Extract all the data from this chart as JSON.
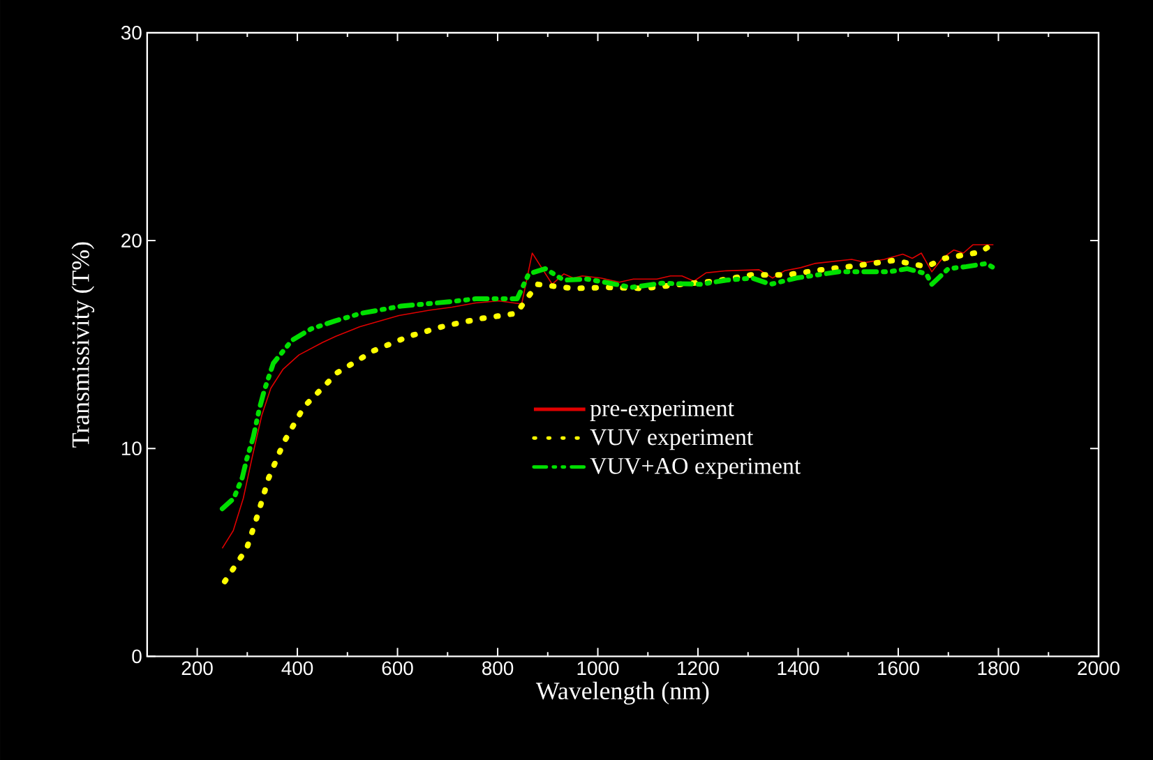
{
  "chart_data": {
    "type": "line",
    "xlabel": "Wavelength (nm)",
    "ylabel": "Transmissivity (T%)",
    "xlim": [
      100,
      2000
    ],
    "xticks": [
      200,
      400,
      600,
      800,
      1000,
      1200,
      1400,
      1600,
      1800,
      2000
    ],
    "ylim": [
      0,
      30
    ],
    "yticks": [
      0,
      10,
      20,
      30
    ],
    "grid": false,
    "legend": "right",
    "marker": "none",
    "series": [
      {
        "name": "pre-experiment",
        "color": "#e00000",
        "line_style": "solid",
        "x": [
          250,
          272,
          292,
          310,
          329,
          347,
          371,
          403,
          450,
          477,
          524,
          603,
          663,
          709,
          756,
          802,
          848,
          869,
          909,
          932,
          951,
          969,
          1006,
          1043,
          1071,
          1118,
          1145,
          1168,
          1192,
          1216,
          1257,
          1322,
          1349,
          1373,
          1405,
          1433,
          1470,
          1507,
          1535,
          1572,
          1609,
          1628,
          1646,
          1667,
          1688,
          1711,
          1730,
          1749,
          1790
        ],
        "values": [
          5.2,
          6.05,
          7.6,
          9.6,
          11.6,
          12.9,
          13.8,
          14.5,
          15.1,
          15.4,
          15.85,
          16.4,
          16.65,
          16.8,
          17.0,
          17.1,
          16.95,
          19.4,
          17.9,
          18.4,
          18.2,
          18.3,
          18.2,
          18.0,
          18.15,
          18.15,
          18.3,
          18.3,
          18.05,
          18.45,
          18.55,
          18.6,
          18.2,
          18.55,
          18.7,
          18.9,
          19.0,
          19.1,
          18.95,
          19.1,
          19.35,
          19.15,
          19.4,
          18.5,
          19.15,
          19.55,
          19.4,
          19.8,
          19.8
        ]
      },
      {
        "name": "VUV experiment",
        "color": "#ffff00",
        "line_style": "dotted",
        "x": [
          255,
          299,
          322,
          343,
          373,
          413,
          480,
          552,
          623,
          695,
          766,
          837,
          879,
          951,
          1021,
          1092,
          1166,
          1234,
          1306,
          1377,
          1448,
          1519,
          1591,
          1656,
          1693,
          1764,
          1780
        ],
        "values": [
          3.6,
          5.2,
          6.9,
          8.6,
          10.3,
          12.0,
          13.65,
          14.7,
          15.4,
          15.9,
          16.25,
          16.5,
          17.9,
          17.7,
          17.75,
          17.7,
          17.9,
          18.05,
          18.35,
          18.35,
          18.6,
          18.8,
          19.05,
          18.75,
          19.15,
          19.45,
          19.7
        ]
      },
      {
        "name": "VUV+AO experiment",
        "color": "#00e000",
        "line_style": "dashdot",
        "x": [
          250,
          273,
          290,
          299,
          312,
          324,
          334,
          352,
          389,
          427,
          477,
          527,
          607,
          700,
          756,
          839,
          862,
          895,
          932,
          978,
          1025,
          1067,
          1127,
          1206,
          1257,
          1308,
          1345,
          1396,
          1481,
          1535,
          1582,
          1618,
          1656,
          1667,
          1700,
          1736,
          1776,
          1790
        ],
        "values": [
          7.1,
          7.6,
          8.6,
          9.5,
          10.55,
          11.9,
          12.8,
          14.1,
          15.2,
          15.75,
          16.15,
          16.5,
          16.85,
          17.05,
          17.2,
          17.2,
          18.4,
          18.65,
          18.1,
          18.15,
          17.95,
          17.75,
          17.95,
          17.9,
          18.1,
          18.2,
          17.9,
          18.2,
          18.5,
          18.5,
          18.5,
          18.65,
          18.4,
          17.9,
          18.65,
          18.75,
          18.9,
          18.7
        ]
      }
    ]
  }
}
